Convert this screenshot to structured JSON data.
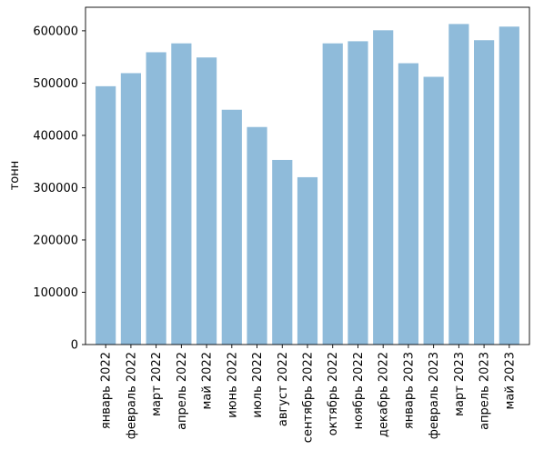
{
  "chart_data": {
    "type": "bar",
    "title": "",
    "xlabel": "",
    "ylabel": "тонн",
    "categories": [
      "январь 2022",
      "февраль 2022",
      "март 2022",
      "апрель 2022",
      "май 2022",
      "июнь 2022",
      "июль 2022",
      "август 2022",
      "сентябрь 2022",
      "октябрь 2022",
      "ноябрь 2022",
      "декабрь 2022",
      "январь 2023",
      "февраль 2023",
      "март 2023",
      "апрель 2023",
      "май 2023"
    ],
    "values": [
      494000,
      519000,
      559000,
      576000,
      549000,
      449000,
      416000,
      353000,
      320000,
      576000,
      580000,
      601000,
      538000,
      512000,
      613000,
      582000,
      608000
    ],
    "ylim": [
      0,
      645000
    ],
    "yticks": [
      0,
      100000,
      200000,
      300000,
      400000,
      500000,
      600000
    ],
    "bar_color": "#8fbbda",
    "grid": false,
    "legend": "none"
  }
}
